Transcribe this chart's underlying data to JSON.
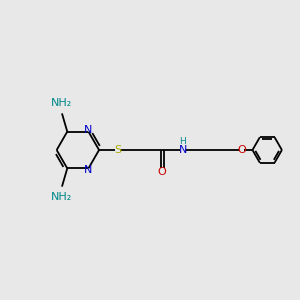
{
  "bg_color": "#e8e8e8",
  "bond_color": "#000000",
  "N_color": "#0000cc",
  "O_color": "#cc0000",
  "S_color": "#aaaa00",
  "NH2_color": "#008888",
  "NH_color": "#008888",
  "figsize": [
    3.0,
    3.0
  ],
  "dpi": 100,
  "xlim": [
    0,
    10
  ],
  "ylim": [
    2,
    8
  ]
}
